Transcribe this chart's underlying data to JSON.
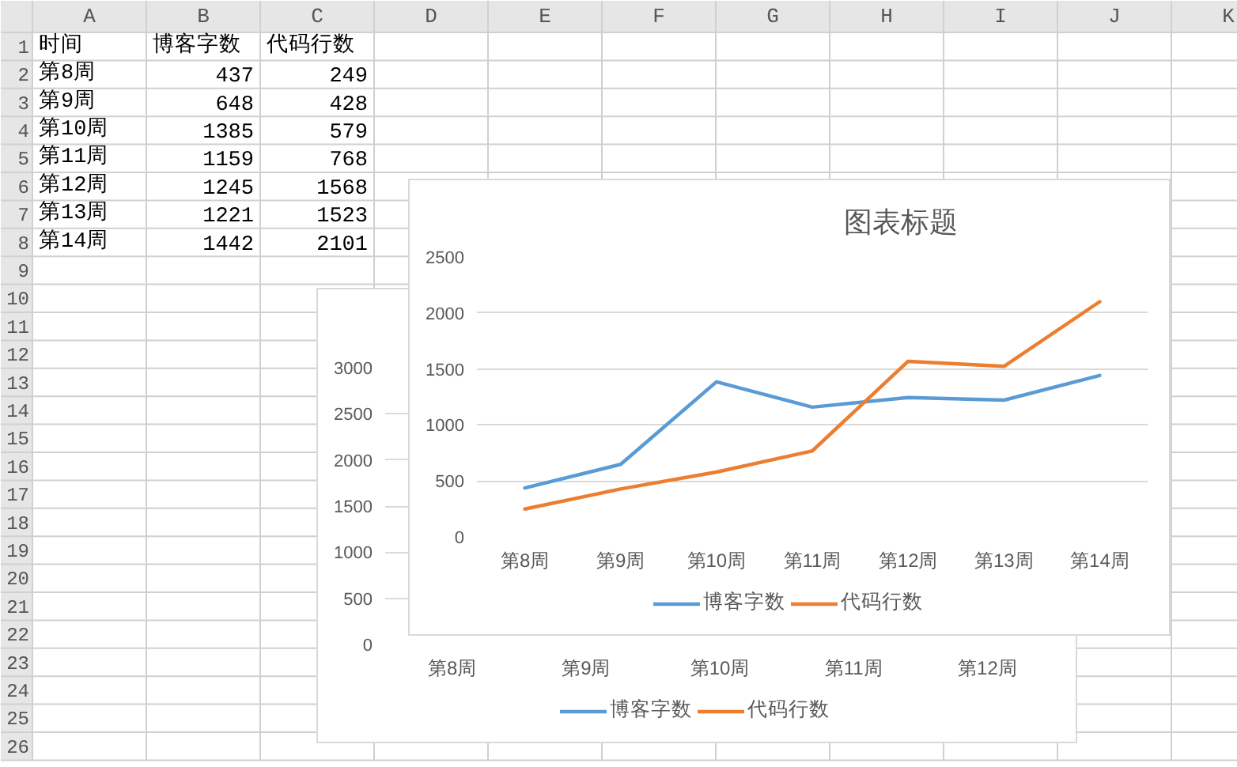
{
  "chart_data": [
    {
      "type": "heatmap",
      "categories": [
        "A",
        "B",
        "C",
        "D",
        "E",
        "F",
        "G",
        "H",
        "I",
        "J",
        "K"
      ],
      "y_categories": [
        "1",
        "2",
        "3",
        "4",
        "5",
        "6",
        "7",
        "8",
        "9",
        "10",
        "11",
        "12",
        "13",
        "14",
        "15",
        "16",
        "17",
        "18",
        "19",
        "20",
        "21",
        "22",
        "23",
        "24",
        "25",
        "26"
      ],
      "cells": [
        [
          null,
          null,
          null,
          null,
          null,
          null,
          null,
          null,
          null,
          null,
          null
        ],
        [
          null,
          null,
          null,
          null,
          null,
          null,
          null,
          null,
          null,
          null,
          null
        ],
        [
          null,
          null,
          null,
          null,
          null,
          null,
          null,
          null,
          null,
          null,
          null
        ],
        [
          null,
          null,
          null,
          null,
          null,
          null,
          null,
          null,
          null,
          null,
          null
        ],
        [
          null,
          null,
          null,
          null,
          null,
          null,
          null,
          null,
          null,
          null,
          null
        ],
        [
          null,
          null,
          null,
          null,
          null,
          null,
          null,
          null,
          null,
          null,
          null
        ],
        [
          null,
          null,
          null,
          null,
          null,
          null,
          null,
          null,
          null,
          null,
          null
        ],
        [
          null,
          null,
          null,
          null,
          null,
          null,
          null,
          null,
          null,
          null,
          null
        ],
        [
          null,
          null,
          null,
          null,
          null,
          null,
          null,
          null,
          null,
          null,
          null
        ],
        [
          null,
          null,
          null,
          null,
          null,
          null,
          null,
          null,
          null,
          null,
          null
        ],
        [
          null,
          null,
          null,
          null,
          null,
          null,
          null,
          null,
          null,
          null,
          null
        ],
        [
          null,
          null,
          null,
          null,
          null,
          null,
          null,
          null,
          null,
          null,
          null
        ],
        [
          null,
          null,
          null,
          null,
          null,
          null,
          null,
          null,
          null,
          null,
          null
        ],
        [
          null,
          null,
          null,
          null,
          null,
          null,
          null,
          null,
          null,
          null,
          null
        ],
        [
          null,
          null,
          null,
          null,
          null,
          null,
          null,
          null,
          null,
          null,
          null
        ],
        [
          null,
          null,
          null,
          null,
          null,
          null,
          null,
          null,
          null,
          null,
          null
        ],
        [
          null,
          null,
          null,
          null,
          null,
          null,
          null,
          null,
          null,
          null,
          null
        ],
        [
          null,
          null,
          null,
          null,
          null,
          null,
          null,
          null,
          null,
          null,
          null
        ],
        [
          null,
          null,
          null,
          null,
          null,
          null,
          null,
          null,
          null,
          null,
          null
        ],
        [
          null,
          null,
          null,
          null,
          null,
          null,
          null,
          null,
          null,
          null,
          null
        ],
        [
          null,
          null,
          null,
          null,
          null,
          null,
          null,
          null,
          null,
          null,
          null
        ],
        [
          null,
          null,
          null,
          null,
          null,
          null,
          null,
          null,
          null,
          null,
          null
        ],
        [
          null,
          null,
          null,
          null,
          null,
          null,
          null,
          null,
          null,
          null,
          null
        ],
        [
          null,
          null,
          null,
          null,
          null,
          null,
          null,
          null,
          null,
          null,
          null
        ],
        [
          null,
          null,
          null,
          null,
          null,
          null,
          null,
          null,
          null,
          null,
          null
        ],
        [
          null,
          null,
          null,
          null,
          null,
          null,
          null,
          null,
          null,
          null,
          null
        ]
      ],
      "cell_labels": [
        [
          "时间",
          "博客字数",
          "代码行数",
          null,
          null,
          null,
          null,
          null,
          null,
          null,
          null
        ],
        [
          "第8周",
          "437",
          "249",
          null,
          null,
          null,
          null,
          null,
          null,
          null,
          null
        ],
        [
          "第9周",
          "648",
          "428",
          null,
          null,
          null,
          null,
          null,
          null,
          null,
          null
        ],
        [
          "第10周",
          "1385",
          "579",
          null,
          null,
          null,
          null,
          null,
          null,
          null,
          null
        ],
        [
          "第11周",
          "1159",
          "768",
          null,
          null,
          null,
          null,
          null,
          null,
          null,
          null
        ],
        [
          "第12周",
          "1245",
          "1568",
          null,
          null,
          null,
          null,
          null,
          null,
          null,
          null
        ],
        [
          "第13周",
          "1221",
          "1523",
          null,
          null,
          null,
          null,
          null,
          null,
          null,
          null
        ],
        [
          "第14周",
          "1442",
          "2101",
          null,
          null,
          null,
          null,
          null,
          null,
          null,
          null
        ],
        [
          null,
          null,
          null,
          null,
          null,
          null,
          null,
          null,
          null,
          null,
          null
        ],
        [
          null,
          null,
          null,
          null,
          null,
          null,
          null,
          null,
          null,
          null,
          null
        ],
        [
          null,
          null,
          null,
          null,
          null,
          null,
          null,
          null,
          null,
          null,
          null
        ],
        [
          null,
          null,
          null,
          null,
          null,
          null,
          null,
          null,
          null,
          null,
          null
        ],
        [
          null,
          null,
          null,
          null,
          null,
          null,
          null,
          null,
          null,
          null,
          null
        ],
        [
          null,
          null,
          null,
          null,
          null,
          null,
          null,
          null,
          null,
          null,
          null
        ],
        [
          null,
          null,
          null,
          null,
          null,
          null,
          null,
          null,
          null,
          null,
          null
        ],
        [
          null,
          null,
          null,
          null,
          null,
          null,
          null,
          null,
          null,
          null,
          null
        ],
        [
          null,
          null,
          null,
          null,
          null,
          null,
          null,
          null,
          null,
          null,
          null
        ],
        [
          null,
          null,
          null,
          null,
          null,
          null,
          null,
          null,
          null,
          null,
          null
        ],
        [
          null,
          null,
          null,
          null,
          null,
          null,
          null,
          null,
          null,
          null,
          null
        ],
        [
          null,
          null,
          null,
          null,
          null,
          null,
          null,
          null,
          null,
          null,
          null
        ],
        [
          null,
          null,
          null,
          null,
          null,
          null,
          null,
          null,
          null,
          null,
          null
        ],
        [
          null,
          null,
          null,
          null,
          null,
          null,
          null,
          null,
          null,
          null,
          null
        ],
        [
          null,
          null,
          null,
          null,
          null,
          null,
          null,
          null,
          null,
          null,
          null
        ],
        [
          null,
          null,
          null,
          null,
          null,
          null,
          null,
          null,
          null,
          null,
          null
        ],
        [
          null,
          null,
          null,
          null,
          null,
          null,
          null,
          null,
          null,
          null,
          null
        ],
        [
          null,
          null,
          null,
          null,
          null,
          null,
          null,
          null,
          null,
          null,
          null
        ]
      ]
    },
    {
      "type": "line",
      "categories": [
        "第8周",
        "第9周",
        "第10周",
        "第11周",
        "第12周"
      ],
      "series": [
        {
          "name": "博客字数",
          "color": "#5b9bd5",
          "values": [
            null,
            null,
            null,
            null,
            null
          ]
        },
        {
          "name": "代码行数",
          "color": "#ed7d31",
          "values": [
            null,
            null,
            null,
            null,
            null
          ]
        }
      ],
      "ylim": [
        0,
        3000
      ],
      "yticks": [
        0,
        500,
        1000,
        1500,
        2000,
        2500,
        3000
      ],
      "grid": "y",
      "legend": "bottom"
    },
    {
      "type": "line",
      "title": "图表标题",
      "categories": [
        "第8周",
        "第9周",
        "第10周",
        "第11周",
        "第12周",
        "第13周",
        "第14周"
      ],
      "series": [
        {
          "name": "博客字数",
          "color": "#5b9bd5",
          "values": [
            437,
            648,
            1385,
            1159,
            1245,
            1221,
            1442
          ]
        },
        {
          "name": "代码行数",
          "color": "#ed7d31",
          "values": [
            249,
            428,
            579,
            768,
            1568,
            1523,
            2101
          ]
        }
      ],
      "ylim": [
        0,
        2500
      ],
      "yticks": [
        0,
        500,
        1000,
        1500,
        2000,
        2500
      ],
      "grid": "y",
      "legend": "bottom"
    }
  ]
}
